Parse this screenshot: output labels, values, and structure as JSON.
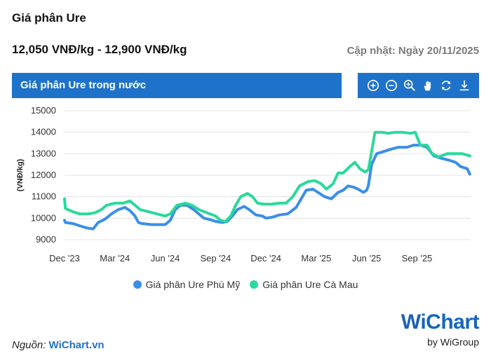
{
  "header": {
    "title": "Giá phân Ure",
    "price_range": "12,050 VNĐ/kg - 12,900 VNĐ/kg",
    "updated": "Cập nhật: Ngày 20/11/2025"
  },
  "section": {
    "label": "Giá phân Ure trong nước"
  },
  "toolbar": {
    "icons": [
      "zoom-in-icon",
      "zoom-out-icon",
      "magnify-icon",
      "pan-hand-icon",
      "reset-icon",
      "download-icon"
    ]
  },
  "colors": {
    "accent": "#1f72c9",
    "series_phu_my": "#3b8ee8",
    "series_ca_mau": "#2bd99a"
  },
  "chart_data": {
    "type": "line",
    "ylabel": "(VNĐ/kg)",
    "ylim": [
      9000,
      15000
    ],
    "yticks": [
      "15000",
      "14000",
      "13000",
      "12000",
      "11000",
      "10000",
      "9000"
    ],
    "xlim": [
      0,
      24.2
    ],
    "xticks": [
      {
        "label": "Dec '23",
        "pos": 0
      },
      {
        "label": "Mar '24",
        "pos": 3
      },
      {
        "label": "Jun '24",
        "pos": 6
      },
      {
        "label": "Sep '24",
        "pos": 9
      },
      {
        "label": "Dec '24",
        "pos": 12
      },
      {
        "label": "Mar '25",
        "pos": 15
      },
      {
        "label": "Jun '25",
        "pos": 18
      },
      {
        "label": "Sep '25",
        "pos": 21
      }
    ],
    "grid": true,
    "legend_position": "bottom",
    "series": [
      {
        "name": "Giá phân Ure Phú Mỹ",
        "color": "#3b8ee8",
        "points": [
          [
            0,
            9900
          ],
          [
            0.05,
            9800
          ],
          [
            0.5,
            9750
          ],
          [
            0.9,
            9650
          ],
          [
            1.3,
            9550
          ],
          [
            1.7,
            9500
          ],
          [
            2.0,
            9800
          ],
          [
            2.4,
            9950
          ],
          [
            2.8,
            10200
          ],
          [
            3.2,
            10400
          ],
          [
            3.6,
            10500
          ],
          [
            3.9,
            10350
          ],
          [
            4.2,
            10100
          ],
          [
            4.4,
            9800
          ],
          [
            4.6,
            9750
          ],
          [
            5.2,
            9700
          ],
          [
            6.0,
            9700
          ],
          [
            6.3,
            9900
          ],
          [
            6.6,
            10400
          ],
          [
            6.9,
            10600
          ],
          [
            7.3,
            10600
          ],
          [
            7.7,
            10400
          ],
          [
            8.0,
            10200
          ],
          [
            8.3,
            10000
          ],
          [
            8.6,
            9950
          ],
          [
            9.0,
            9850
          ],
          [
            9.4,
            9800
          ],
          [
            9.7,
            9850
          ],
          [
            10.0,
            10100
          ],
          [
            10.3,
            10400
          ],
          [
            10.7,
            10550
          ],
          [
            11.0,
            10400
          ],
          [
            11.4,
            10150
          ],
          [
            11.8,
            10100
          ],
          [
            12.0,
            10000
          ],
          [
            12.4,
            10050
          ],
          [
            12.8,
            10150
          ],
          [
            13.3,
            10200
          ],
          [
            13.8,
            10500
          ],
          [
            14.1,
            10900
          ],
          [
            14.4,
            11300
          ],
          [
            14.8,
            11350
          ],
          [
            15.1,
            11200
          ],
          [
            15.5,
            11000
          ],
          [
            15.9,
            10900
          ],
          [
            16.3,
            11200
          ],
          [
            16.6,
            11300
          ],
          [
            16.9,
            11500
          ],
          [
            17.2,
            11450
          ],
          [
            17.5,
            11350
          ],
          [
            17.8,
            11200
          ],
          [
            18.0,
            11300
          ],
          [
            18.1,
            11500
          ],
          [
            18.3,
            12500
          ],
          [
            18.6,
            13000
          ],
          [
            19.0,
            13100
          ],
          [
            19.4,
            13200
          ],
          [
            19.9,
            13300
          ],
          [
            20.4,
            13300
          ],
          [
            20.8,
            13400
          ],
          [
            21.2,
            13400
          ],
          [
            21.6,
            13300
          ],
          [
            22.0,
            12900
          ],
          [
            22.4,
            12800
          ],
          [
            22.9,
            12700
          ],
          [
            23.3,
            12600
          ],
          [
            23.6,
            12400
          ],
          [
            24.0,
            12300
          ],
          [
            24.15,
            12050
          ]
        ]
      },
      {
        "name": "Giá phân Ure Cà Mau",
        "color": "#2bd99a",
        "points": [
          [
            0,
            10900
          ],
          [
            0.05,
            10450
          ],
          [
            0.5,
            10300
          ],
          [
            0.9,
            10200
          ],
          [
            1.4,
            10200
          ],
          [
            1.8,
            10250
          ],
          [
            2.2,
            10400
          ],
          [
            2.5,
            10600
          ],
          [
            3.0,
            10700
          ],
          [
            3.5,
            10700
          ],
          [
            3.9,
            10800
          ],
          [
            4.2,
            10600
          ],
          [
            4.5,
            10400
          ],
          [
            5.0,
            10300
          ],
          [
            5.5,
            10200
          ],
          [
            6.0,
            10100
          ],
          [
            6.3,
            10200
          ],
          [
            6.7,
            10600
          ],
          [
            7.2,
            10700
          ],
          [
            7.6,
            10600
          ],
          [
            8.0,
            10400
          ],
          [
            8.5,
            10250
          ],
          [
            9.0,
            10100
          ],
          [
            9.3,
            9900
          ],
          [
            9.6,
            9850
          ],
          [
            9.9,
            10100
          ],
          [
            10.2,
            10600
          ],
          [
            10.5,
            11000
          ],
          [
            10.9,
            11150
          ],
          [
            11.2,
            11000
          ],
          [
            11.5,
            10700
          ],
          [
            11.9,
            10650
          ],
          [
            12.3,
            10650
          ],
          [
            12.8,
            10700
          ],
          [
            13.2,
            10700
          ],
          [
            13.6,
            11000
          ],
          [
            14.0,
            11500
          ],
          [
            14.5,
            11700
          ],
          [
            14.9,
            11750
          ],
          [
            15.3,
            11600
          ],
          [
            15.6,
            11350
          ],
          [
            16.0,
            11600
          ],
          [
            16.3,
            12100
          ],
          [
            16.6,
            12100
          ],
          [
            17.0,
            12400
          ],
          [
            17.3,
            12600
          ],
          [
            17.6,
            12300
          ],
          [
            17.9,
            12150
          ],
          [
            18.1,
            12250
          ],
          [
            18.3,
            13100
          ],
          [
            18.5,
            14000
          ],
          [
            18.9,
            14000
          ],
          [
            19.3,
            13950
          ],
          [
            19.7,
            14000
          ],
          [
            20.1,
            14000
          ],
          [
            20.6,
            13950
          ],
          [
            20.9,
            14000
          ],
          [
            21.2,
            13400
          ],
          [
            21.6,
            13400
          ],
          [
            21.9,
            13000
          ],
          [
            22.3,
            12850
          ],
          [
            22.8,
            13000
          ],
          [
            23.3,
            13000
          ],
          [
            23.7,
            13000
          ],
          [
            24.15,
            12900
          ]
        ]
      }
    ]
  },
  "source": {
    "prefix": "Nguồn:",
    "link": "WiChart.vn"
  },
  "logo": {
    "mark": "W",
    "text": "iChart",
    "sub": "by WiGroup"
  }
}
